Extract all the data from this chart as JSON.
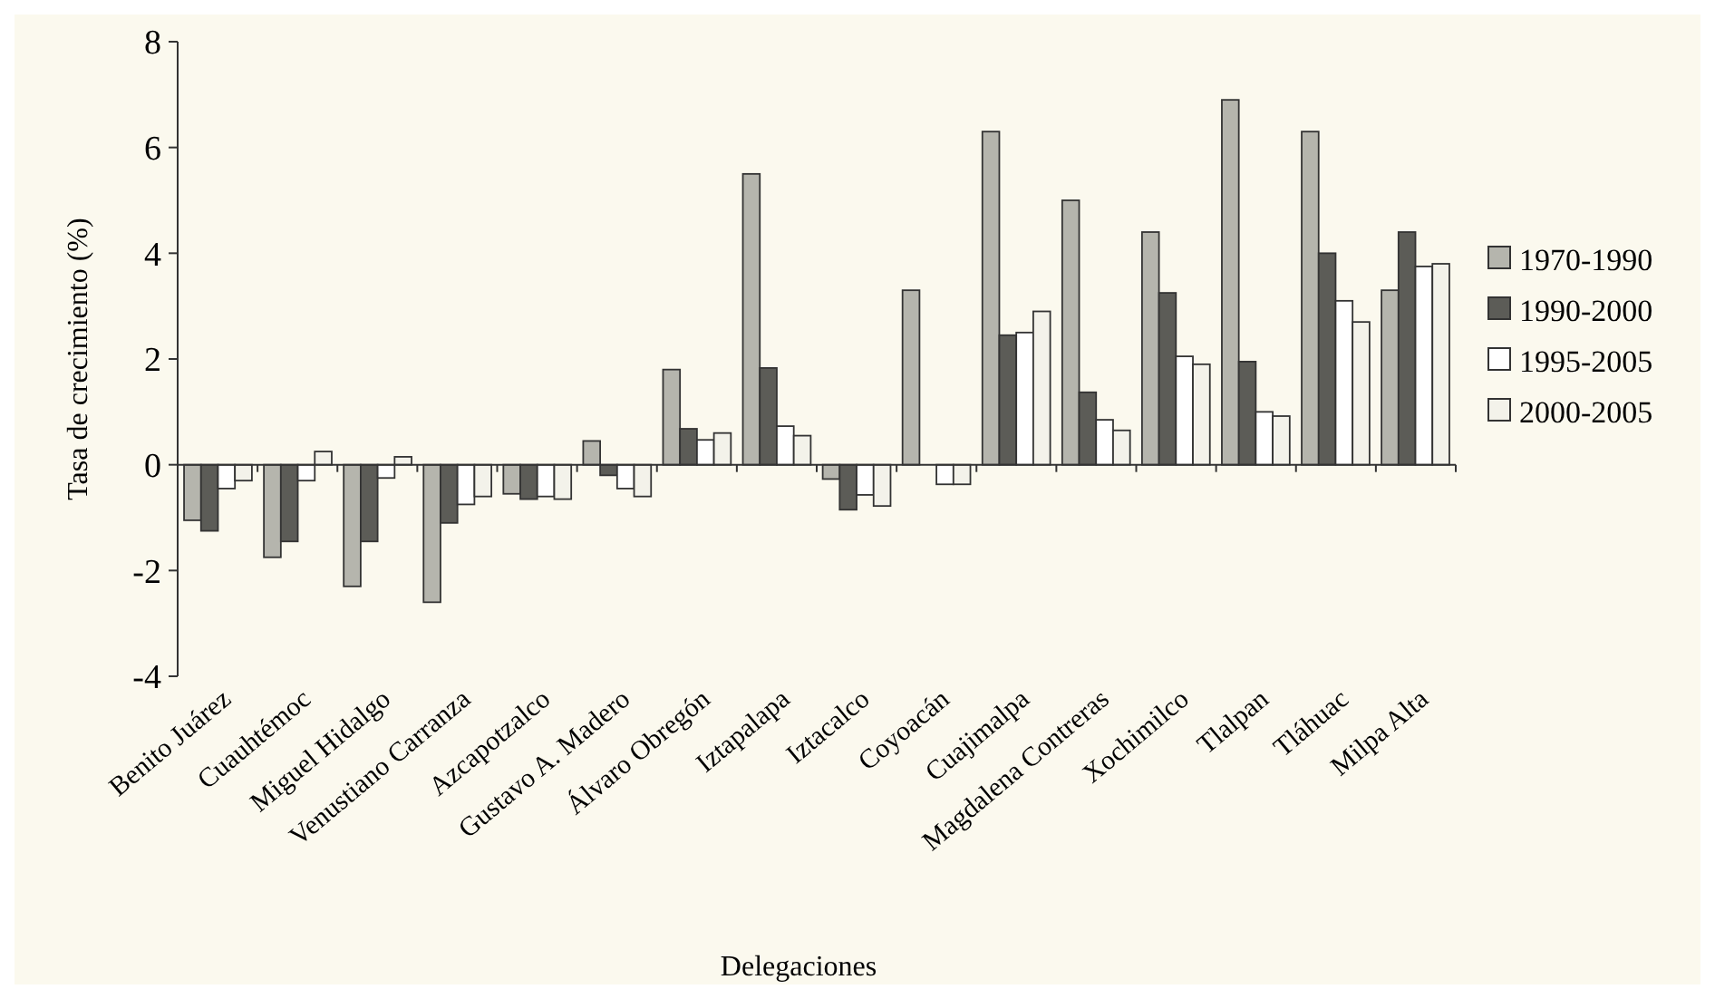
{
  "chart_data": {
    "type": "bar",
    "xlabel": "Delegaciones",
    "ylabel": "Tasa de crecimiento (%)",
    "categories": [
      "Benito Juárez",
      "Cuauhtémoc",
      "Miguel Hidalgo",
      "Venustiano Carranza",
      "Azcapotzalco",
      "Gustavo A. Madero",
      "Álvaro Obregón",
      "Iztapalapa",
      "Iztacalco",
      "Coyoacán",
      "Cuajimalpa",
      "Magdalena Contreras",
      "Xochimilco",
      "Tlalpan",
      "Tláhuac",
      "Milpa Alta"
    ],
    "series": [
      {
        "name": "1970-1990",
        "color": "#b5b5ad",
        "values": [
          -1.05,
          -1.75,
          -2.3,
          -2.6,
          -0.55,
          0.45,
          1.8,
          5.5,
          -0.27,
          3.3,
          6.3,
          5.0,
          4.4,
          6.9,
          6.3,
          3.3
        ]
      },
      {
        "name": "1990-2000",
        "color": "#5c5c57",
        "values": [
          -1.25,
          -1.45,
          -1.45,
          -1.1,
          -0.65,
          -0.2,
          0.68,
          1.83,
          -0.85,
          null,
          2.45,
          1.37,
          3.25,
          1.95,
          4.0,
          4.4
        ]
      },
      {
        "name": "1995-2005",
        "color": "#ffffff",
        "values": [
          -0.45,
          -0.3,
          -0.25,
          -0.75,
          -0.6,
          -0.45,
          0.47,
          0.73,
          -0.57,
          -0.37,
          2.5,
          0.85,
          2.05,
          1.0,
          3.1,
          3.75
        ]
      },
      {
        "name": "2000-2005",
        "color": "#f3f2ea",
        "values": [
          -0.3,
          0.25,
          0.15,
          -0.6,
          -0.65,
          -0.6,
          0.6,
          0.55,
          -0.78,
          -0.37,
          2.9,
          0.65,
          1.9,
          0.92,
          2.7,
          3.8
        ]
      }
    ],
    "ylim": [
      -4,
      8
    ],
    "yticks": [
      -4,
      -2,
      0,
      2,
      4,
      6,
      8
    ],
    "legend": "right"
  }
}
